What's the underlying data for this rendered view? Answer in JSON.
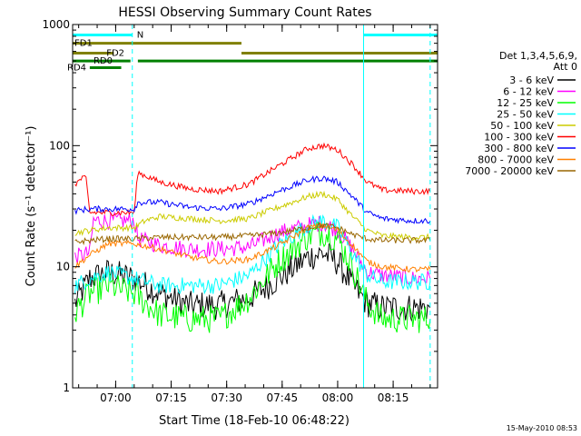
{
  "page": {
    "title": "HESSI Observing Summary Count Rates",
    "timestamp": "15-May-2010 08:53"
  },
  "chart_data": {
    "type": "line",
    "title": "HESSI Observing Summary Count Rates",
    "xlabel": "Start Time (18-Feb-10 06:48:22)",
    "ylabel": "Count Rate (s⁻¹ detector⁻¹)",
    "y_scale": "log",
    "ylim": [
      1,
      1000
    ],
    "xlim": [
      "06:48:22",
      "08:27:00"
    ],
    "x_ticks": [
      "07:00",
      "07:15",
      "07:30",
      "07:45",
      "08:00",
      "08:15"
    ],
    "y_ticks": [
      "1",
      "10",
      "100",
      "1000"
    ],
    "grid": false,
    "legend_position": "right",
    "legend_header": [
      "Det 1,3,4,5,6,9,",
      "Att 0"
    ],
    "series": [
      {
        "name": "3 - 6 keV",
        "color": "#000000",
        "points": [
          [
            "06:49",
            5.0
          ],
          [
            "06:53",
            8.0
          ],
          [
            "06:58",
            9.0
          ],
          [
            "07:05",
            8.0
          ],
          [
            "07:12",
            6.0
          ],
          [
            "07:20",
            4.8
          ],
          [
            "07:28",
            4.8
          ],
          [
            "07:36",
            5.5
          ],
          [
            "07:44",
            8.0
          ],
          [
            "07:52",
            12.0
          ],
          [
            "07:56",
            13.0
          ],
          [
            "08:00",
            11.0
          ],
          [
            "08:04",
            7.0
          ],
          [
            "08:08",
            5.0
          ],
          [
            "08:12",
            4.6
          ],
          [
            "08:20",
            4.6
          ],
          [
            "08:25",
            4.6
          ]
        ]
      },
      {
        "name": "6 - 12 keV",
        "color": "#ff00ff",
        "points": [
          [
            "06:49",
            12.0
          ],
          [
            "06:53",
            13.0
          ],
          [
            "06:54",
            24.0
          ],
          [
            "07:05",
            24.0
          ],
          [
            "07:06",
            17.0
          ],
          [
            "07:12",
            15.0
          ],
          [
            "07:20",
            14.0
          ],
          [
            "07:28",
            14.0
          ],
          [
            "07:36",
            14.5
          ],
          [
            "07:44",
            19.0
          ],
          [
            "07:52",
            22.0
          ],
          [
            "07:56",
            23.0
          ],
          [
            "08:00",
            20.0
          ],
          [
            "08:04",
            14.0
          ],
          [
            "08:08",
            9.0
          ],
          [
            "08:12",
            8.5
          ],
          [
            "08:20",
            8.0
          ],
          [
            "08:25",
            8.0
          ]
        ]
      },
      {
        "name": "12 - 25 keV",
        "color": "#00ff00",
        "points": [
          [
            "06:49",
            4.2
          ],
          [
            "06:53",
            6.0
          ],
          [
            "06:58",
            7.0
          ],
          [
            "07:05",
            6.0
          ],
          [
            "07:12",
            4.0
          ],
          [
            "07:20",
            3.7
          ],
          [
            "07:28",
            3.7
          ],
          [
            "07:36",
            5.5
          ],
          [
            "07:44",
            11.0
          ],
          [
            "07:52",
            18.0
          ],
          [
            "07:56",
            19.5
          ],
          [
            "08:00",
            17.0
          ],
          [
            "08:04",
            10.0
          ],
          [
            "08:08",
            5.0
          ],
          [
            "08:12",
            3.7
          ],
          [
            "08:20",
            3.7
          ],
          [
            "08:25",
            3.7
          ]
        ]
      },
      {
        "name": "25 - 50 keV",
        "color": "#00ffff",
        "points": [
          [
            "06:49",
            7.0
          ],
          [
            "06:53",
            8.0
          ],
          [
            "06:58",
            9.0
          ],
          [
            "07:05",
            8.0
          ],
          [
            "07:12",
            7.0
          ],
          [
            "07:20",
            7.0
          ],
          [
            "07:28",
            7.0
          ],
          [
            "07:36",
            8.5
          ],
          [
            "07:44",
            15.0
          ],
          [
            "07:52",
            22.0
          ],
          [
            "07:56",
            24.0
          ],
          [
            "08:00",
            21.0
          ],
          [
            "08:04",
            13.0
          ],
          [
            "08:08",
            8.5
          ],
          [
            "08:12",
            7.5
          ],
          [
            "08:20",
            7.5
          ],
          [
            "08:25",
            7.5
          ]
        ]
      },
      {
        "name": "50 - 100 keV",
        "color": "#cccc00",
        "points": [
          [
            "06:49",
            19.0
          ],
          [
            "06:53",
            20.0
          ],
          [
            "06:58",
            21.0
          ],
          [
            "07:05",
            21.0
          ],
          [
            "07:08",
            24.0
          ],
          [
            "07:12",
            26.0
          ],
          [
            "07:20",
            25.0
          ],
          [
            "07:28",
            24.0
          ],
          [
            "07:36",
            25.0
          ],
          [
            "07:44",
            31.0
          ],
          [
            "07:52",
            38.0
          ],
          [
            "07:56",
            40.0
          ],
          [
            "08:00",
            36.0
          ],
          [
            "08:04",
            26.0
          ],
          [
            "08:08",
            20.0
          ],
          [
            "08:12",
            18.0
          ],
          [
            "08:20",
            17.5
          ],
          [
            "08:25",
            17.5
          ]
        ]
      },
      {
        "name": "100 - 300 keV",
        "color": "#ff0000",
        "points": [
          [
            "06:49",
            48.0
          ],
          [
            "06:51",
            54.0
          ],
          [
            "06:52",
            53.0
          ],
          [
            "06:53",
            28.0
          ],
          [
            "07:05",
            28.0
          ],
          [
            "07:06",
            60.0
          ],
          [
            "07:12",
            50.0
          ],
          [
            "07:20",
            44.0
          ],
          [
            "07:28",
            42.0
          ],
          [
            "07:36",
            48.0
          ],
          [
            "07:44",
            68.0
          ],
          [
            "07:52",
            95.0
          ],
          [
            "07:56",
            100.0
          ],
          [
            "08:00",
            92.0
          ],
          [
            "08:04",
            70.0
          ],
          [
            "08:08",
            50.0
          ],
          [
            "08:12",
            43.0
          ],
          [
            "08:20",
            42.0
          ],
          [
            "08:25",
            42.0
          ]
        ]
      },
      {
        "name": "300 - 800 keV",
        "color": "#0000ff",
        "points": [
          [
            "06:49",
            29.0
          ],
          [
            "06:53",
            30.0
          ],
          [
            "06:58",
            30.0
          ],
          [
            "07:05",
            30.0
          ],
          [
            "07:06",
            34.0
          ],
          [
            "07:12",
            34.0
          ],
          [
            "07:20",
            31.0
          ],
          [
            "07:28",
            30.0
          ],
          [
            "07:36",
            33.0
          ],
          [
            "07:44",
            42.0
          ],
          [
            "07:52",
            52.0
          ],
          [
            "07:56",
            54.0
          ],
          [
            "08:00",
            50.0
          ],
          [
            "08:04",
            38.0
          ],
          [
            "08:08",
            28.0
          ],
          [
            "08:12",
            25.0
          ],
          [
            "08:20",
            24.0
          ],
          [
            "08:25",
            24.0
          ]
        ]
      },
      {
        "name": "800 - 7000 keV",
        "color": "#ff8000",
        "points": [
          [
            "06:49",
            10.0
          ],
          [
            "06:53",
            12.5
          ],
          [
            "06:58",
            15.5
          ],
          [
            "07:05",
            15.5
          ],
          [
            "07:12",
            14.0
          ],
          [
            "07:20",
            12.0
          ],
          [
            "07:28",
            11.0
          ],
          [
            "07:36",
            11.5
          ],
          [
            "07:44",
            15.0
          ],
          [
            "07:52",
            21.0
          ],
          [
            "07:56",
            22.0
          ],
          [
            "08:00",
            20.0
          ],
          [
            "08:04",
            15.0
          ],
          [
            "08:08",
            11.0
          ],
          [
            "08:12",
            10.0
          ],
          [
            "08:20",
            9.5
          ],
          [
            "08:25",
            9.5
          ]
        ]
      },
      {
        "name": "7000 - 20000 keV",
        "color": "#996600",
        "points": [
          [
            "06:49",
            16.0
          ],
          [
            "06:53",
            16.5
          ],
          [
            "06:58",
            17.0
          ],
          [
            "07:05",
            17.0
          ],
          [
            "07:12",
            17.5
          ],
          [
            "07:20",
            17.5
          ],
          [
            "07:28",
            17.5
          ],
          [
            "07:36",
            18.0
          ],
          [
            "07:44",
            19.0
          ],
          [
            "07:52",
            21.0
          ],
          [
            "07:56",
            22.0
          ],
          [
            "08:00",
            21.0
          ],
          [
            "08:04",
            18.5
          ],
          [
            "08:08",
            17.0
          ],
          [
            "08:12",
            16.5
          ],
          [
            "08:20",
            16.5
          ],
          [
            "08:25",
            16.5
          ]
        ]
      }
    ],
    "state_bars": [
      {
        "label": "N",
        "color": "#00ffff",
        "level": 820,
        "segments": [
          [
            "06:48:22",
            "07:04:30"
          ],
          [
            "08:07:00",
            "08:27:00"
          ]
        ]
      },
      {
        "label": "FD1",
        "color": "#808000",
        "level": 700,
        "segments": [
          [
            "06:48:22",
            "07:34:00"
          ]
        ]
      },
      {
        "label": "FD2",
        "color": "#808000",
        "level": 580,
        "segments": [
          [
            "06:48:22",
            "06:59:30"
          ],
          [
            "07:34:00",
            "08:27:00"
          ]
        ]
      },
      {
        "label": "RD0",
        "color": "#008000",
        "level": 500,
        "segments": [
          [
            "06:48:22",
            "07:04:00"
          ],
          [
            "07:06:00",
            "08:27:00"
          ]
        ]
      },
      {
        "label": "RD4",
        "color": "#008000",
        "level": 440,
        "segments": [
          [
            "06:53:00",
            "07:01:30"
          ]
        ]
      }
    ],
    "vertical_markers": [
      {
        "time": "06:48:22",
        "color": "#00ffff",
        "style": "solid"
      },
      {
        "time": "07:04:30",
        "color": "#00ffff",
        "style": "dashed"
      },
      {
        "time": "08:07:00",
        "color": "#00ffff",
        "style": "solid"
      },
      {
        "time": "08:25:00",
        "color": "#00ffff",
        "style": "dashed"
      }
    ]
  }
}
